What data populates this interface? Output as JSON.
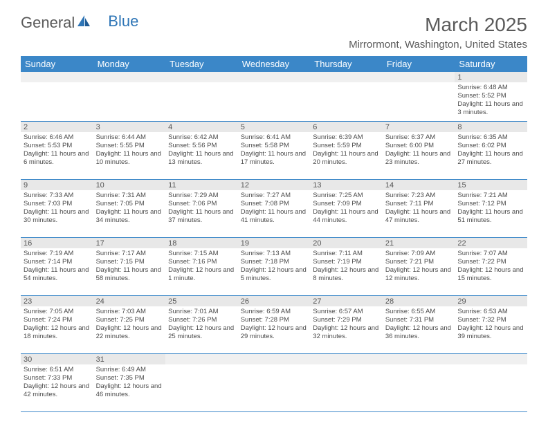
{
  "brand": {
    "part1": "General",
    "part2": "Blue"
  },
  "title": "March 2025",
  "location": "Mirrormont, Washington, United States",
  "colors": {
    "header_bg": "#3b87c8",
    "header_text": "#ffffff",
    "daynum_bg": "#e8e8e8",
    "row_border": "#3b87c8",
    "text": "#4a4a4a",
    "title_text": "#5a5a5a",
    "brand_blue": "#2e75b6"
  },
  "day_names": [
    "Sunday",
    "Monday",
    "Tuesday",
    "Wednesday",
    "Thursday",
    "Friday",
    "Saturday"
  ],
  "weeks": [
    {
      "nums": [
        "",
        "",
        "",
        "",
        "",
        "",
        "1"
      ],
      "cells": [
        {
          "sunrise": "",
          "sunset": "",
          "daylight": ""
        },
        {
          "sunrise": "",
          "sunset": "",
          "daylight": ""
        },
        {
          "sunrise": "",
          "sunset": "",
          "daylight": ""
        },
        {
          "sunrise": "",
          "sunset": "",
          "daylight": ""
        },
        {
          "sunrise": "",
          "sunset": "",
          "daylight": ""
        },
        {
          "sunrise": "",
          "sunset": "",
          "daylight": ""
        },
        {
          "sunrise": "Sunrise: 6:48 AM",
          "sunset": "Sunset: 5:52 PM",
          "daylight": "Daylight: 11 hours and 3 minutes."
        }
      ]
    },
    {
      "nums": [
        "2",
        "3",
        "4",
        "5",
        "6",
        "7",
        "8"
      ],
      "cells": [
        {
          "sunrise": "Sunrise: 6:46 AM",
          "sunset": "Sunset: 5:53 PM",
          "daylight": "Daylight: 11 hours and 6 minutes."
        },
        {
          "sunrise": "Sunrise: 6:44 AM",
          "sunset": "Sunset: 5:55 PM",
          "daylight": "Daylight: 11 hours and 10 minutes."
        },
        {
          "sunrise": "Sunrise: 6:42 AM",
          "sunset": "Sunset: 5:56 PM",
          "daylight": "Daylight: 11 hours and 13 minutes."
        },
        {
          "sunrise": "Sunrise: 6:41 AM",
          "sunset": "Sunset: 5:58 PM",
          "daylight": "Daylight: 11 hours and 17 minutes."
        },
        {
          "sunrise": "Sunrise: 6:39 AM",
          "sunset": "Sunset: 5:59 PM",
          "daylight": "Daylight: 11 hours and 20 minutes."
        },
        {
          "sunrise": "Sunrise: 6:37 AM",
          "sunset": "Sunset: 6:00 PM",
          "daylight": "Daylight: 11 hours and 23 minutes."
        },
        {
          "sunrise": "Sunrise: 6:35 AM",
          "sunset": "Sunset: 6:02 PM",
          "daylight": "Daylight: 11 hours and 27 minutes."
        }
      ]
    },
    {
      "nums": [
        "9",
        "10",
        "11",
        "12",
        "13",
        "14",
        "15"
      ],
      "cells": [
        {
          "sunrise": "Sunrise: 7:33 AM",
          "sunset": "Sunset: 7:03 PM",
          "daylight": "Daylight: 11 hours and 30 minutes."
        },
        {
          "sunrise": "Sunrise: 7:31 AM",
          "sunset": "Sunset: 7:05 PM",
          "daylight": "Daylight: 11 hours and 34 minutes."
        },
        {
          "sunrise": "Sunrise: 7:29 AM",
          "sunset": "Sunset: 7:06 PM",
          "daylight": "Daylight: 11 hours and 37 minutes."
        },
        {
          "sunrise": "Sunrise: 7:27 AM",
          "sunset": "Sunset: 7:08 PM",
          "daylight": "Daylight: 11 hours and 41 minutes."
        },
        {
          "sunrise": "Sunrise: 7:25 AM",
          "sunset": "Sunset: 7:09 PM",
          "daylight": "Daylight: 11 hours and 44 minutes."
        },
        {
          "sunrise": "Sunrise: 7:23 AM",
          "sunset": "Sunset: 7:11 PM",
          "daylight": "Daylight: 11 hours and 47 minutes."
        },
        {
          "sunrise": "Sunrise: 7:21 AM",
          "sunset": "Sunset: 7:12 PM",
          "daylight": "Daylight: 11 hours and 51 minutes."
        }
      ]
    },
    {
      "nums": [
        "16",
        "17",
        "18",
        "19",
        "20",
        "21",
        "22"
      ],
      "cells": [
        {
          "sunrise": "Sunrise: 7:19 AM",
          "sunset": "Sunset: 7:14 PM",
          "daylight": "Daylight: 11 hours and 54 minutes."
        },
        {
          "sunrise": "Sunrise: 7:17 AM",
          "sunset": "Sunset: 7:15 PM",
          "daylight": "Daylight: 11 hours and 58 minutes."
        },
        {
          "sunrise": "Sunrise: 7:15 AM",
          "sunset": "Sunset: 7:16 PM",
          "daylight": "Daylight: 12 hours and 1 minute."
        },
        {
          "sunrise": "Sunrise: 7:13 AM",
          "sunset": "Sunset: 7:18 PM",
          "daylight": "Daylight: 12 hours and 5 minutes."
        },
        {
          "sunrise": "Sunrise: 7:11 AM",
          "sunset": "Sunset: 7:19 PM",
          "daylight": "Daylight: 12 hours and 8 minutes."
        },
        {
          "sunrise": "Sunrise: 7:09 AM",
          "sunset": "Sunset: 7:21 PM",
          "daylight": "Daylight: 12 hours and 12 minutes."
        },
        {
          "sunrise": "Sunrise: 7:07 AM",
          "sunset": "Sunset: 7:22 PM",
          "daylight": "Daylight: 12 hours and 15 minutes."
        }
      ]
    },
    {
      "nums": [
        "23",
        "24",
        "25",
        "26",
        "27",
        "28",
        "29"
      ],
      "cells": [
        {
          "sunrise": "Sunrise: 7:05 AM",
          "sunset": "Sunset: 7:24 PM",
          "daylight": "Daylight: 12 hours and 18 minutes."
        },
        {
          "sunrise": "Sunrise: 7:03 AM",
          "sunset": "Sunset: 7:25 PM",
          "daylight": "Daylight: 12 hours and 22 minutes."
        },
        {
          "sunrise": "Sunrise: 7:01 AM",
          "sunset": "Sunset: 7:26 PM",
          "daylight": "Daylight: 12 hours and 25 minutes."
        },
        {
          "sunrise": "Sunrise: 6:59 AM",
          "sunset": "Sunset: 7:28 PM",
          "daylight": "Daylight: 12 hours and 29 minutes."
        },
        {
          "sunrise": "Sunrise: 6:57 AM",
          "sunset": "Sunset: 7:29 PM",
          "daylight": "Daylight: 12 hours and 32 minutes."
        },
        {
          "sunrise": "Sunrise: 6:55 AM",
          "sunset": "Sunset: 7:31 PM",
          "daylight": "Daylight: 12 hours and 36 minutes."
        },
        {
          "sunrise": "Sunrise: 6:53 AM",
          "sunset": "Sunset: 7:32 PM",
          "daylight": "Daylight: 12 hours and 39 minutes."
        }
      ]
    },
    {
      "nums": [
        "30",
        "31",
        "",
        "",
        "",
        "",
        ""
      ],
      "cells": [
        {
          "sunrise": "Sunrise: 6:51 AM",
          "sunset": "Sunset: 7:33 PM",
          "daylight": "Daylight: 12 hours and 42 minutes."
        },
        {
          "sunrise": "Sunrise: 6:49 AM",
          "sunset": "Sunset: 7:35 PM",
          "daylight": "Daylight: 12 hours and 46 minutes."
        },
        {
          "sunrise": "",
          "sunset": "",
          "daylight": ""
        },
        {
          "sunrise": "",
          "sunset": "",
          "daylight": ""
        },
        {
          "sunrise": "",
          "sunset": "",
          "daylight": ""
        },
        {
          "sunrise": "",
          "sunset": "",
          "daylight": ""
        },
        {
          "sunrise": "",
          "sunset": "",
          "daylight": ""
        }
      ]
    }
  ]
}
